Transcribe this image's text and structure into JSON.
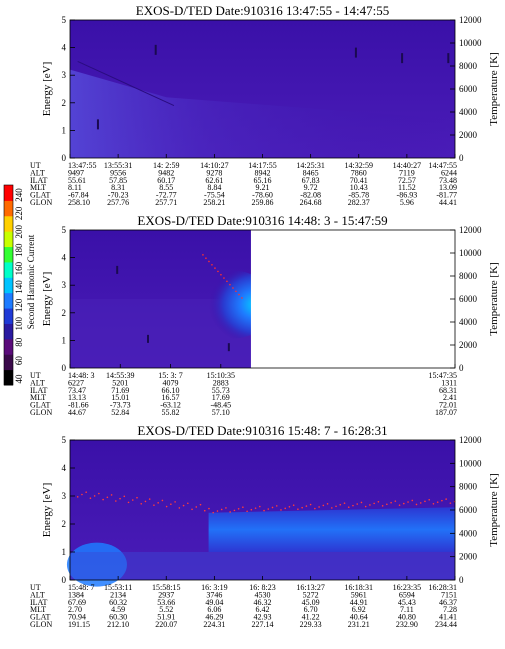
{
  "colorbar": {
    "label": "Second Harmonic Current",
    "ticks": [
      "40",
      "60",
      "80",
      "100",
      "120",
      "140",
      "160",
      "180",
      "200",
      "220",
      "240"
    ],
    "colors": [
      "#000000",
      "#3a0a4a",
      "#5a0b7a",
      "#2a1aa0",
      "#1f3ad6",
      "#1e7bff",
      "#00c4ff",
      "#00ffc8",
      "#33ff33",
      "#c8ff00",
      "#ffd000",
      "#ff6a00",
      "#ff0000"
    ]
  },
  "panels": [
    {
      "title": "EXOS-D/TED   Date:910316  13:47:55 - 14:47:55",
      "left_axis_label": "Energy [eV]",
      "right_axis_label": "Temperature [K]",
      "table": {
        "rows": [
          {
            "label": "UT",
            "values": [
              "13:47:55",
              "13:55:31",
              "14: 2:59",
              "14:10:27",
              "14:17:55",
              "14:25:31",
              "14:32:59",
              "14:40:27",
              "14:47:55"
            ]
          },
          {
            "label": "ALT",
            "values": [
              "9497",
              "9556",
              "9482",
              "9278",
              "8942",
              "8465",
              "7860",
              "7119",
              "6244"
            ]
          },
          {
            "label": "ILAT",
            "values": [
              "55.61",
              "57.85",
              "60.17",
              "62.61",
              "65.16",
              "67.83",
              "70.41",
              "72.57",
              "73.48"
            ]
          },
          {
            "label": "MLT",
            "values": [
              "8.11",
              "8.31",
              "8.55",
              "8.84",
              "9.21",
              "9.72",
              "10.43",
              "11.52",
              "13.09"
            ]
          },
          {
            "label": "GLAT",
            "values": [
              "-67.84",
              "-70.23",
              "-72.77",
              "-75.54",
              "-78.60",
              "-82.08",
              "-85.78",
              "-86.93",
              "-81.77"
            ]
          },
          {
            "label": "GLON",
            "values": [
              "258.10",
              "257.76",
              "257.71",
              "258.21",
              "259.86",
              "264.68",
              "282.37",
              "5.96",
              "44.41"
            ]
          }
        ]
      }
    },
    {
      "title": "EXOS-D/TED   Date:910316  14:48: 3 - 15:47:59",
      "left_axis_label": "Energy [eV]",
      "right_axis_label": "Temperature [K]",
      "table": {
        "rows": [
          {
            "label": "UT",
            "values": [
              "14:48: 3",
              "14:55:39",
              "15: 3: 7",
              "15:10:35",
              "15:47:35"
            ]
          },
          {
            "label": "ALT",
            "values": [
              "6227",
              "5201",
              "4079",
              "2883",
              "1311"
            ]
          },
          {
            "label": "ILAT",
            "values": [
              "73.47",
              "71.69",
              "66.10",
              "55.73",
              "68.31"
            ]
          },
          {
            "label": "MLT",
            "values": [
              "13.13",
              "15.01",
              "16.57",
              "17.69",
              "2.41"
            ]
          },
          {
            "label": "GLAT",
            "values": [
              "-81.66",
              "-73.73",
              "-63.12",
              "-48.45",
              "72.01"
            ]
          },
          {
            "label": "GLON",
            "values": [
              "44.67",
              "52.84",
              "55.82",
              "57.10",
              "187.07"
            ]
          }
        ]
      }
    },
    {
      "title": "EXOS-D/TED   Date:910316  15:48: 7 - 16:28:31",
      "left_axis_label": "Energy [eV]",
      "right_axis_label": "Temperature [K]",
      "table": {
        "rows": [
          {
            "label": "UT",
            "values": [
              "15:48: 7",
              "15:53:11",
              "15:58:15",
              "16: 3:19",
              "16: 8:23",
              "16:13:27",
              "16:18:31",
              "16:23:35",
              "16:28:31"
            ]
          },
          {
            "label": "ALT",
            "values": [
              "1384",
              "2134",
              "2937",
              "3746",
              "4530",
              "5272",
              "5961",
              "6594",
              "7151"
            ]
          },
          {
            "label": "ILAT",
            "values": [
              "67.69",
              "60.32",
              "53.66",
              "49.04",
              "46.32",
              "45.09",
              "44.91",
              "45.43",
              "46.37"
            ]
          },
          {
            "label": "MLT",
            "values": [
              "2.70",
              "4.59",
              "5.52",
              "6.06",
              "6.42",
              "6.70",
              "6.92",
              "7.11",
              "7.28"
            ]
          },
          {
            "label": "GLAT",
            "values": [
              "70.94",
              "60.30",
              "51.91",
              "46.29",
              "42.93",
              "41.22",
              "40.64",
              "40.80",
              "41.41"
            ]
          },
          {
            "label": "GLON",
            "values": [
              "191.15",
              "212.10",
              "220.07",
              "224.31",
              "227.14",
              "229.33",
              "231.21",
              "232.90",
              "234.44"
            ]
          }
        ]
      }
    }
  ],
  "chart_data": [
    {
      "type": "heatmap",
      "title": "EXOS-D/TED   Date:910316  13:47:55 - 14:47:55",
      "ylabel": "Energy [eV]",
      "y2label": "Temperature [K]",
      "ylim": [
        0,
        5
      ],
      "y2lim": [
        0,
        12000
      ],
      "yticks": [
        0,
        1,
        2,
        3,
        4,
        5
      ],
      "y2ticks": [
        0,
        2000,
        4000,
        6000,
        8000,
        10000,
        12000
      ],
      "x": [
        "13:47:55",
        "13:55:31",
        "14: 2:59",
        "14:10:27",
        "14:17:55",
        "14:25:31",
        "14:32:59",
        "14:40:27",
        "14:47:55"
      ]
    },
    {
      "type": "heatmap",
      "title": "EXOS-D/TED   Date:910316  14:48: 3 - 15:47:59",
      "ylabel": "Energy [eV]",
      "y2label": "Temperature [K]",
      "ylim": [
        0,
        5
      ],
      "y2lim": [
        0,
        12000
      ],
      "yticks": [
        0,
        1,
        2,
        3,
        4,
        5
      ],
      "y2ticks": [
        0,
        2000,
        4000,
        6000,
        8000,
        10000,
        12000
      ],
      "x": [
        "14:48: 3",
        "14:55:39",
        "15: 3: 7",
        "15:10:35",
        "15:47:35"
      ]
    },
    {
      "type": "heatmap",
      "title": "EXOS-D/TED   Date:910316  15:48: 7 - 16:28:31",
      "ylabel": "Energy [eV]",
      "y2label": "Temperature [K]",
      "ylim": [
        0,
        5
      ],
      "y2lim": [
        0,
        12000
      ],
      "yticks": [
        0,
        1,
        2,
        3,
        4,
        5
      ],
      "y2ticks": [
        0,
        2000,
        4000,
        6000,
        8000,
        10000,
        12000
      ],
      "x": [
        "15:48: 7",
        "15:53:11",
        "15:58:15",
        "16: 3:19",
        "16: 8:23",
        "16:13:27",
        "16:18:31",
        "16:23:35",
        "16:28:31"
      ]
    }
  ]
}
